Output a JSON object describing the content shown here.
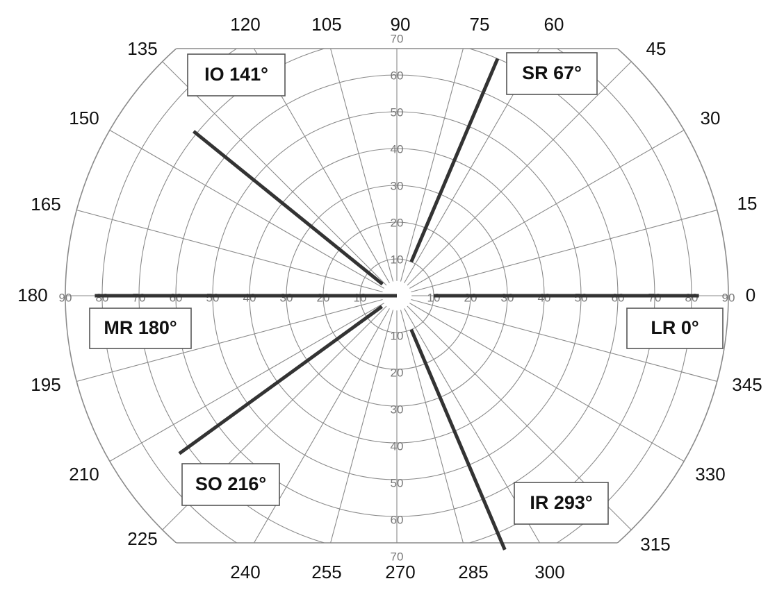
{
  "chart_data": {
    "type": "polar",
    "angle_labels": [
      "0",
      "15",
      "30",
      "45",
      "60",
      "75",
      "90",
      "105",
      "120",
      "135",
      "150",
      "165",
      "180",
      "195",
      "210",
      "225",
      "240",
      "255",
      "270",
      "285",
      "300",
      "315",
      "330",
      "345"
    ],
    "horizontal_ticks_right": [
      "10",
      "20",
      "30",
      "40",
      "50",
      "60",
      "70",
      "80",
      "90"
    ],
    "horizontal_ticks_left": [
      "10",
      "20",
      "30",
      "40",
      "50",
      "60",
      "70",
      "80",
      "90"
    ],
    "vertical_ticks_up": [
      "10",
      "20",
      "30",
      "40",
      "50",
      "60",
      "70"
    ],
    "vertical_ticks_down": [
      "10",
      "20",
      "30",
      "40",
      "50",
      "60",
      "70"
    ],
    "series": [
      {
        "name": "LR 0°",
        "angle": 0,
        "r_start": 10,
        "r_end": 82
      },
      {
        "name": "SR 67°",
        "angle": 67,
        "r_start": 10,
        "r_end": 70
      },
      {
        "name": "IO 141°",
        "angle": 141,
        "r_start": 5,
        "r_end": 71
      },
      {
        "name": "MR 180°",
        "angle": 180,
        "r_start": 0,
        "r_end": 82
      },
      {
        "name": "SO 216°",
        "angle": 216,
        "r_start": 5,
        "r_end": 73
      },
      {
        "name": "IR 293°",
        "angle": 293,
        "r_start": 10,
        "r_end": 75
      }
    ],
    "colors": {
      "grid": "#8a8a8a",
      "line": "#333333",
      "label": "#111111",
      "tick": "#777777"
    }
  }
}
